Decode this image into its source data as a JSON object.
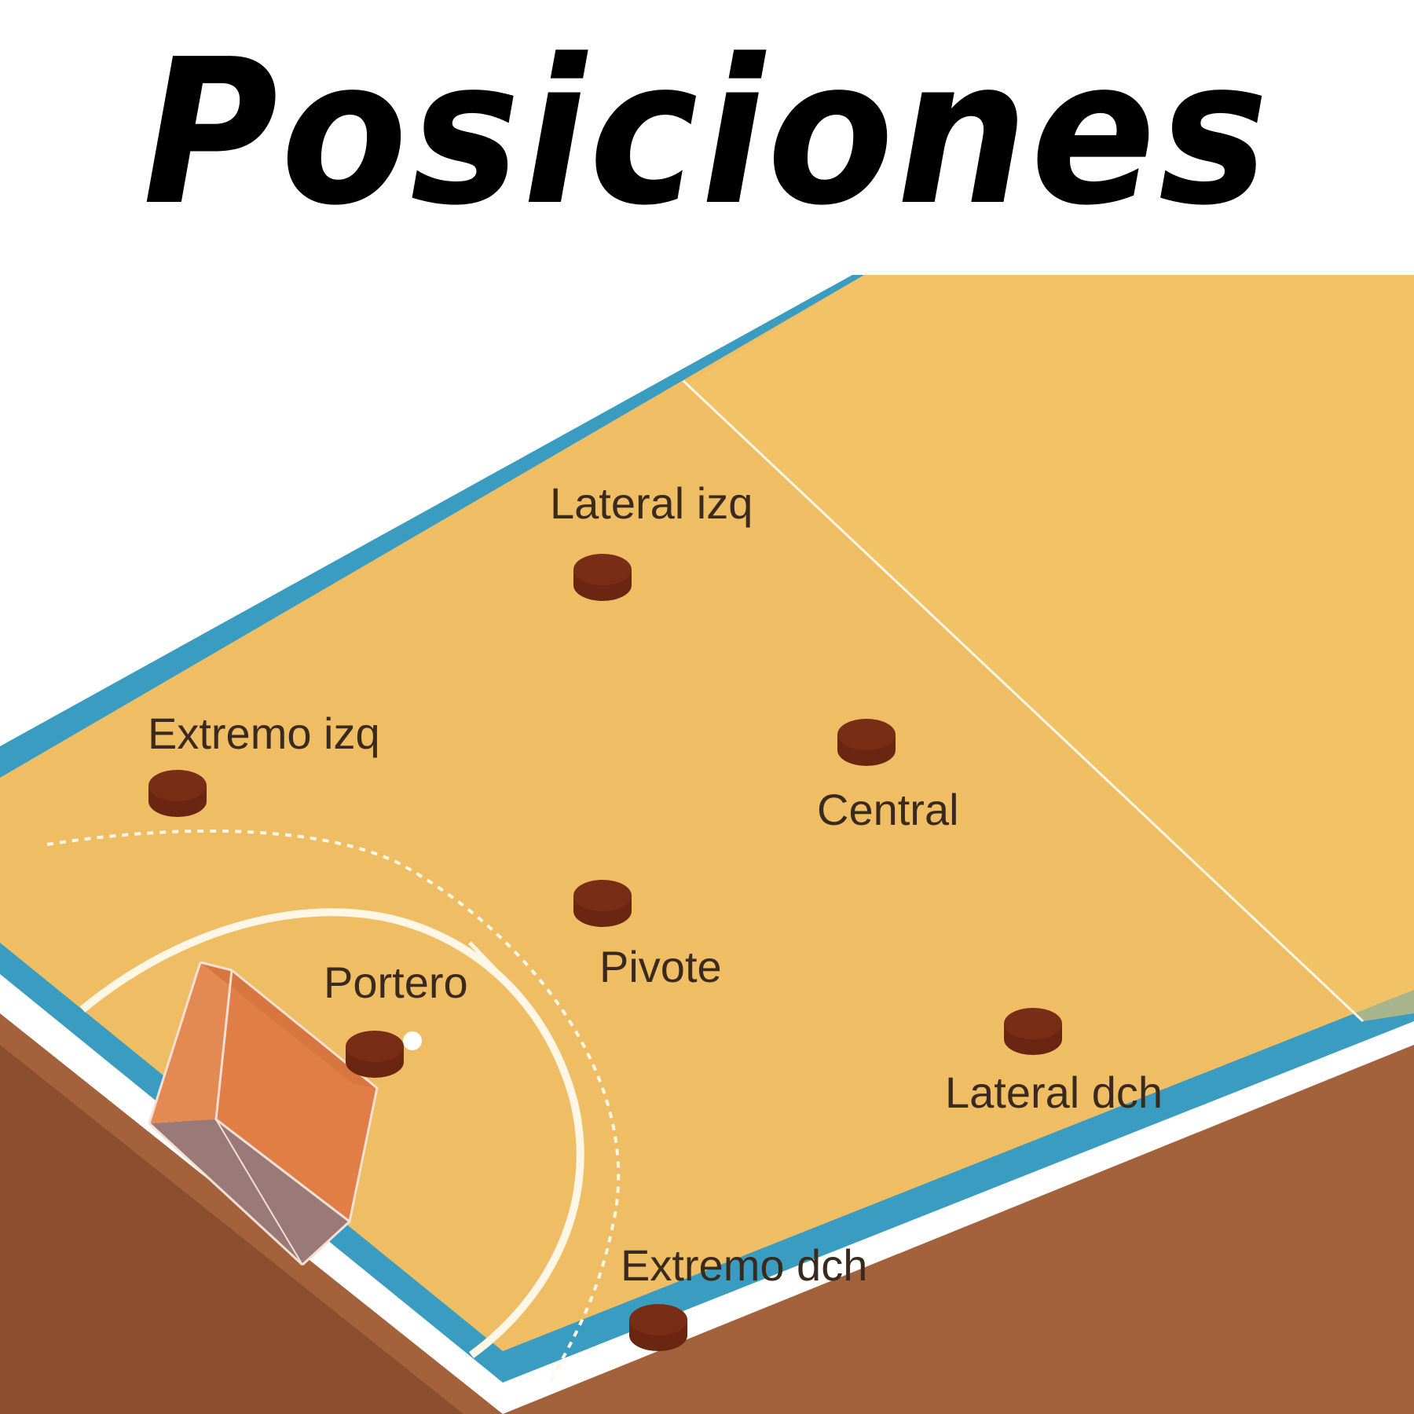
{
  "title": "Posiciones",
  "colors": {
    "court": "#efbe64",
    "border": "#3a9cc1",
    "base": "#a4623c",
    "base_dark": "#8c4f2d",
    "line": "#fff6e6",
    "player": "#6b2612",
    "player_top": "#5a1e0c",
    "goal": "#e07e45",
    "label": "#3a2a1e"
  },
  "positions": [
    {
      "label": "Lateral izq"
    },
    {
      "label": "Extremo izq"
    },
    {
      "label": "Central"
    },
    {
      "label": "Pivote"
    },
    {
      "label": "Portero"
    },
    {
      "label": "Lateral dch"
    },
    {
      "label": "Extremo dch"
    }
  ]
}
